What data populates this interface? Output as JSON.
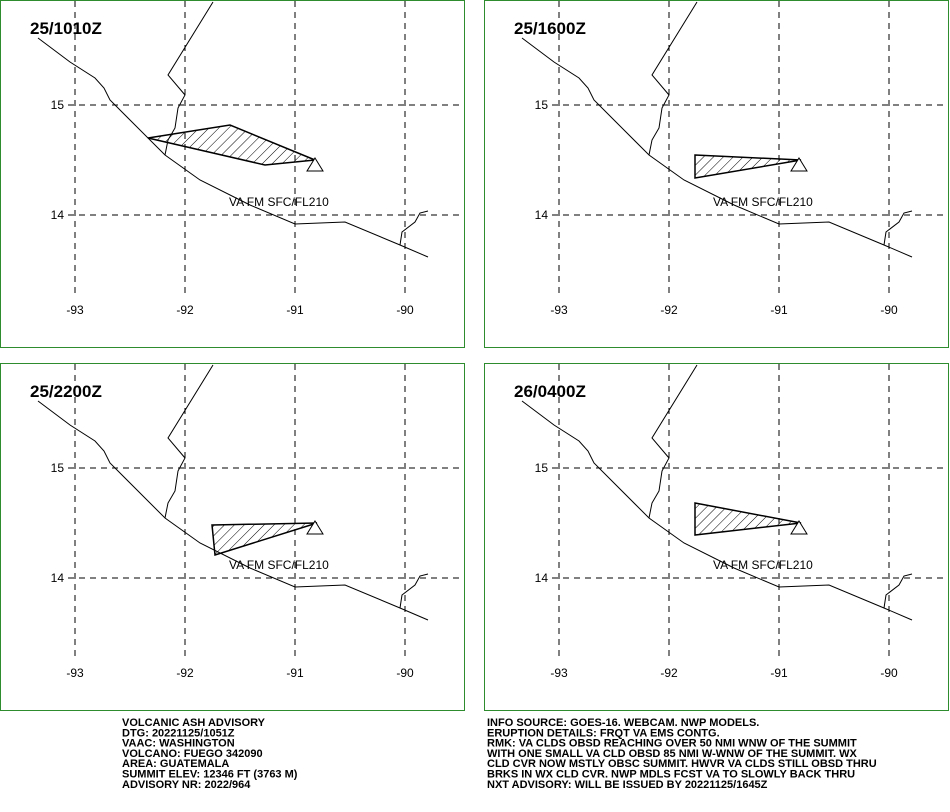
{
  "panels": [
    {
      "time": "25/1010Z",
      "label": "VA FM SFC/FL210"
    },
    {
      "time": "25/1600Z",
      "label": "VA FM SFC/FL210"
    },
    {
      "time": "25/2200Z",
      "label": "VA FM SFC/FL210"
    },
    {
      "time": "26/0400Z",
      "label": "VA FM SFC/FL210"
    }
  ],
  "lat_labels": [
    15,
    14
  ],
  "lon_labels": [
    -93,
    -92,
    -91,
    -90
  ],
  "left_text": [
    "VOLCANIC ASH ADVISORY",
    "DTG: 20221125/1051Z",
    "VAAC: WASHINGTON",
    "VOLCANO: FUEGO 342090",
    "AREA: GUATEMALA",
    "SUMMIT ELEV: 12346 FT (3763 M)",
    "ADVISORY NR: 2022/964"
  ],
  "right_text": [
    "INFO SOURCE: GOES-16. WEBCAM. NWP MODELS.",
    "ERUPTION DETAILS: FRQT VA EMS CONTG.",
    "RMK: VA CLDS OBSD REACHING OVER 50 NMI WNW OF THE SUMMIT",
    "WITH ONE SMALL VA CLD OBSD 85 NMI W-WNW OF THE SUMMIT. WX",
    "CLD CVR NOW MSTLY OBSC SUMMIT. HWVR VA CLDS STILL OBSD THRU",
    "BRKS IN WX CLD CVR. NWP MDLS FCST VA TO SLOWLY BACK THRU",
    "NXT ADVISORY: WILL BE ISSUED BY 20221125/1645Z"
  ]
}
